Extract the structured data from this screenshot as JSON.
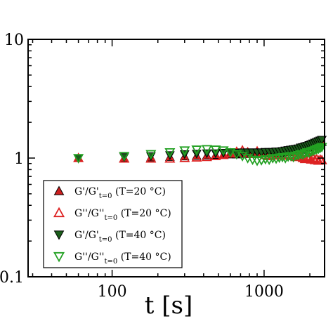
{
  "chart_data": {
    "type": "scatter",
    "xlabel": "t [s]",
    "ylabel": "",
    "xscale": "log",
    "yscale": "log",
    "xlim": [
      28,
      2500
    ],
    "ylim": [
      0.1,
      10
    ],
    "xticks": [
      100,
      1000
    ],
    "xtick_labels": [
      "100",
      "1000"
    ],
    "yticks": [
      0.1,
      1,
      10
    ],
    "ytick_labels": [
      "0.1",
      "1",
      "10"
    ],
    "grid": false,
    "legend_position": "lower-left",
    "series": [
      {
        "name": "G'/G'_{t=0} (T=20 °C)",
        "legend_main": "G'/G'",
        "legend_sub": "t=0",
        "legend_tail": " (T=20 °C)",
        "marker": "triangle-up",
        "filled": true,
        "color": "#cc1f1f",
        "edge": "#000000",
        "x": [
          60,
          120,
          180,
          240,
          300,
          360,
          420,
          480,
          540,
          600,
          660,
          720,
          780,
          840,
          900,
          960,
          1020,
          1080,
          1140,
          1200,
          1260,
          1320,
          1380,
          1440,
          1500,
          1560,
          1620,
          1680,
          1740,
          1800,
          1860,
          1920,
          1980,
          2040,
          2100,
          2160,
          2220,
          2280,
          2340,
          2400
        ],
        "y": [
          1.0,
          1.0,
          1.01,
          1.02,
          1.03,
          1.04,
          1.05,
          1.06,
          1.06,
          1.07,
          1.07,
          1.08,
          1.08,
          1.08,
          1.08,
          1.09,
          1.09,
          1.09,
          1.1,
          1.1,
          1.1,
          1.11,
          1.12,
          1.12,
          1.13,
          1.14,
          1.15,
          1.16,
          1.17,
          1.18,
          1.2,
          1.21,
          1.23,
          1.25,
          1.26,
          1.28,
          1.3,
          1.32,
          1.34,
          1.36
        ]
      },
      {
        "name": "G''/G''_{t=0} (T=20 °C)",
        "legend_main": "G''/G''",
        "legend_sub": "t=0",
        "legend_tail": " (T=20 °C)",
        "marker": "triangle-up",
        "filled": false,
        "color": "#dd2222",
        "edge": "#dd2222",
        "x": [
          60,
          120,
          180,
          240,
          300,
          360,
          420,
          480,
          540,
          600,
          660,
          720,
          780,
          840,
          900,
          960,
          1020,
          1080,
          1140,
          1200,
          1260,
          1320,
          1380,
          1440,
          1500,
          1560,
          1620,
          1680,
          1740,
          1800,
          1860,
          1920,
          1980,
          2040,
          2100,
          2160,
          2220,
          2280,
          2340,
          2400
        ],
        "y": [
          1.0,
          0.99,
          0.99,
          0.99,
          1.0,
          1.01,
          1.02,
          1.04,
          1.06,
          1.1,
          1.13,
          1.16,
          1.12,
          1.08,
          1.14,
          1.1,
          1.06,
          1.04,
          1.09,
          1.07,
          1.05,
          1.08,
          1.06,
          1.05,
          1.04,
          1.06,
          1.02,
          1.05,
          1.03,
          1.0,
          0.98,
          1.02,
          0.99,
          0.97,
          1.0,
          0.96,
          0.98,
          0.95,
          0.97,
          0.96
        ]
      },
      {
        "name": "G'/G'_{t=0} (T=40 °C)",
        "legend_main": "G'/G'",
        "legend_sub": "t=0",
        "legend_tail": " (T=40 °C)",
        "marker": "triangle-down",
        "filled": true,
        "color": "#1b5e1b",
        "edge": "#000000",
        "x": [
          60,
          120,
          180,
          240,
          300,
          360,
          420,
          480,
          540,
          600,
          660,
          720,
          780,
          840,
          900,
          960,
          1020,
          1080,
          1140,
          1200,
          1260,
          1320,
          1380,
          1440,
          1500,
          1560,
          1620,
          1680,
          1740,
          1800,
          1860,
          1920,
          1980,
          2040,
          2100,
          2160,
          2220,
          2280,
          2340,
          2400
        ],
        "y": [
          1.0,
          1.02,
          1.04,
          1.06,
          1.08,
          1.09,
          1.1,
          1.1,
          1.11,
          1.11,
          1.11,
          1.12,
          1.12,
          1.12,
          1.12,
          1.12,
          1.13,
          1.13,
          1.13,
          1.14,
          1.14,
          1.15,
          1.16,
          1.17,
          1.18,
          1.19,
          1.2,
          1.21,
          1.23,
          1.24,
          1.26,
          1.27,
          1.29,
          1.31,
          1.33,
          1.35,
          1.37,
          1.39,
          1.41,
          1.43
        ]
      },
      {
        "name": "G''/G''_{t=0} (T=40 °C)",
        "legend_main": "G''/G''",
        "legend_sub": "t=0",
        "legend_tail": " (T=40 °C)",
        "marker": "triangle-down",
        "filled": false,
        "color": "#22a022",
        "edge": "#22a022",
        "x": [
          60,
          120,
          180,
          240,
          300,
          360,
          420,
          480,
          540,
          600,
          660,
          720,
          780,
          840,
          900,
          960,
          1020,
          1080,
          1140,
          1200,
          1260,
          1320,
          1380,
          1440,
          1500,
          1560,
          1620,
          1680,
          1740,
          1800,
          1860,
          1920,
          1980,
          2040,
          2100,
          2160,
          2220,
          2280,
          2340,
          2400
        ],
        "y": [
          1.0,
          1.04,
          1.08,
          1.12,
          1.16,
          1.18,
          1.19,
          1.18,
          1.16,
          1.12,
          1.08,
          1.04,
          1.0,
          0.97,
          0.95,
          0.96,
          0.98,
          0.97,
          1.0,
          0.99,
          1.01,
          1.02,
          1.0,
          1.03,
          1.04,
          1.02,
          1.05,
          1.06,
          1.08,
          1.07,
          1.1,
          1.12,
          1.11,
          1.14,
          1.15,
          1.17,
          1.19,
          1.2,
          1.22,
          1.24
        ]
      }
    ]
  }
}
